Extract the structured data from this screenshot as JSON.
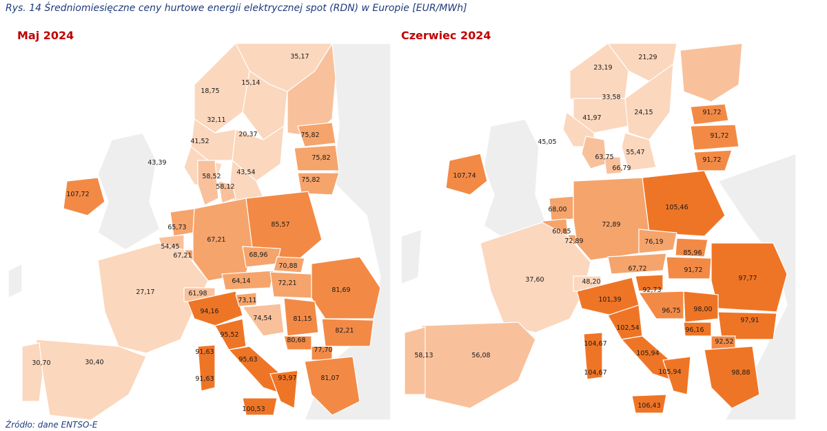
{
  "caption": "Rys. 14 Średniomiesięczne ceny hurtowe energii elektrycznej spot (RDN) w Europie [EUR/MWh]",
  "source": "Źródło: dane ENTSO-E",
  "colors": {
    "very_light": "#fbd7bd",
    "light": "#f8c19b",
    "medium": "#f5a46c",
    "strong": "#f28a46",
    "darkest": "#ef7526",
    "title": "#c00000",
    "text_blue": "#1f3a7a"
  },
  "maps": [
    {
      "title": "Maj 2024",
      "labels": {
        "no_north": "35,17",
        "no_mid": "18,75",
        "se_north": "15,14",
        "no_west": "32,11",
        "se_mid": "20,37",
        "no_south": "41,52",
        "ee": "75,82",
        "lv": "75,82",
        "lt": "75,82",
        "gb": "43,39",
        "dk_west": "58,52",
        "dk_east": "58,12",
        "se_south": "43,54",
        "ie": "107,72",
        "nl": "65,73",
        "de": "67,21",
        "pl": "85,57",
        "be": "54,45",
        "lu": "67,21",
        "cz": "68,96",
        "sk": "70,88",
        "at": "64,14",
        "hu": "72,21",
        "ro": "81,69",
        "fr": "27,17",
        "ch": "61,98",
        "si": "73,11",
        "it_north": "94,16",
        "hr": "74,54",
        "rs": "81,15",
        "bg": "82,21",
        "it_cnorth": "95,52",
        "me": "80,68",
        "mk": "77,70",
        "sardinia": "91,63",
        "it_south": "95,63",
        "sardinia2": "91,63",
        "it_calabria": "93,97",
        "gr": "81,07",
        "pt": "30,70",
        "es": "30,40",
        "sicily": "100,53"
      }
    },
    {
      "title": "Czerwiec 2024",
      "labels": {
        "no_north": "21,29",
        "no_mid": "23,19",
        "no_west": "33,58",
        "se_mid": "24,15",
        "no_south": "41,97",
        "ee": "91,72",
        "lv": "91,72",
        "lt": "91,72",
        "gb": "45,05",
        "dk_west": "63,75",
        "dk_east": "66,79",
        "se_south": "55,47",
        "ie": "107,74",
        "pl": "105,46",
        "nl": "68,00",
        "de": "72,89",
        "be": "60,85",
        "lu": "72,89",
        "cz": "76,19",
        "sk": "85,96",
        "at": "67,72",
        "hu": "91,72",
        "ro": "97,77",
        "fr": "37,60",
        "ch": "48,20",
        "si": "92,73",
        "it_north": "101,39",
        "hr": "96,75",
        "rs": "98,00",
        "bg": "97,91",
        "me": "96,16",
        "mk": "92,52",
        "it_cnorth": "102,54",
        "sardinia": "104,67",
        "it_south": "105,94",
        "sardinia2": "104,67",
        "it_calabria": "105,94",
        "gr": "98,88",
        "pt": "58,13",
        "es": "56,08",
        "sicily": "106,43"
      }
    }
  ]
}
